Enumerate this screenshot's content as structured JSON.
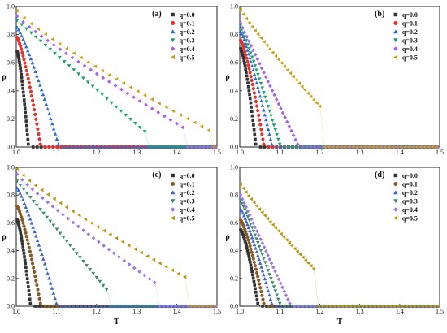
{
  "colors": {
    "q00": "#333333",
    "q01": "#e8302a",
    "q02": "#2f6bd8",
    "q03": "#1aa36b",
    "q04": "#a562e8",
    "q05": "#c9a211",
    "q01_alt": "#8a5a26",
    "q02_alt": "#3f63c9",
    "q03_alt": "#3d8a6a",
    "q04_alt": "#9b78e0",
    "q05_alt": "#b8950a"
  },
  "chart_data": [
    {
      "type": "scatter",
      "panel": "(a)",
      "xlabel": "",
      "ylabel": "ρ",
      "xlim": [
        1.0,
        1.5
      ],
      "ylim": [
        0.0,
        1.0
      ],
      "xticks": [
        "1.0",
        "1.1",
        "1.2",
        "1.3",
        "1.4",
        "1.5"
      ],
      "yticks": [
        "0.0",
        "0.2",
        "0.4",
        "0.6",
        "0.8",
        "1.0"
      ],
      "legend_position": "top-right",
      "series": [
        {
          "name": "q=0.0",
          "marker": "square",
          "color_key": "q00",
          "start_y": 0.68,
          "drop_x": 1.03,
          "curve": 1.4
        },
        {
          "name": "q=0.1",
          "marker": "circle",
          "color_key": "q01",
          "start_y": 0.78,
          "drop_x": 1.06,
          "curve": 1.3
        },
        {
          "name": "q=0.2",
          "marker": "triangle-up",
          "color_key": "q02",
          "start_y": 0.85,
          "drop_x": 1.105,
          "curve": 1.2
        },
        {
          "name": "q=0.3",
          "marker": "triangle-down",
          "color_key": "q03",
          "start_y": 0.9,
          "drop_x": 1.32,
          "end_y": 0.11,
          "curve": 1.0
        },
        {
          "name": "q=0.4",
          "marker": "diamond",
          "color_key": "q04",
          "start_y": 0.93,
          "drop_x": 1.415,
          "end_y": 0.14,
          "curve": 0.9
        },
        {
          "name": "q=0.5",
          "marker": "triangle-left",
          "color_key": "q05",
          "start_y": 0.97,
          "drop_x": 1.48,
          "end_y": 0.12,
          "curve": 0.85
        }
      ]
    },
    {
      "type": "scatter",
      "panel": "(b)",
      "xlabel": "",
      "ylabel": "ρ",
      "xlim": [
        1.0,
        1.5
      ],
      "ylim": [
        0.0,
        1.0
      ],
      "xticks": [
        "1.0",
        "1.1",
        "1.2",
        "1.3",
        "1.4",
        "1.5"
      ],
      "yticks": [
        "0.0",
        "0.2",
        "0.4",
        "0.6",
        "0.8",
        "1.0"
      ],
      "legend_position": "top-right",
      "series": [
        {
          "name": "q=0.0",
          "marker": "square",
          "color_key": "q00",
          "start_y": 0.7,
          "drop_x": 1.04,
          "curve": 1.4
        },
        {
          "name": "q=0.1",
          "marker": "circle",
          "color_key": "q01",
          "start_y": 0.76,
          "drop_x": 1.06,
          "curve": 1.3
        },
        {
          "name": "q=0.2",
          "marker": "triangle-up",
          "color_key": "q02",
          "start_y": 0.82,
          "drop_x": 1.08,
          "curve": 1.2
        },
        {
          "name": "q=0.3",
          "marker": "triangle-down",
          "color_key": "q03",
          "start_y": 0.86,
          "drop_x": 1.1,
          "curve": 1.1
        },
        {
          "name": "q=0.4",
          "marker": "diamond",
          "color_key": "q04",
          "start_y": 0.88,
          "drop_x": 1.145,
          "curve": 1.0
        },
        {
          "name": "q=0.5",
          "marker": "triangle-left",
          "color_key": "q05",
          "start_y": 0.98,
          "drop_x": 1.2,
          "end_y": 0.29,
          "curve": 0.9
        }
      ]
    },
    {
      "type": "scatter",
      "panel": "(c)",
      "xlabel": "T",
      "ylabel": "ρ",
      "xlim": [
        1.0,
        1.5
      ],
      "ylim": [
        0.0,
        1.0
      ],
      "xticks": [
        "1.0",
        "1.1",
        "1.2",
        "1.3",
        "1.4",
        "1.5"
      ],
      "yticks": [
        "0.0",
        "0.2",
        "0.4",
        "0.6",
        "0.8",
        "1.0"
      ],
      "legend_position": "top-right",
      "series": [
        {
          "name": "q=0.0",
          "marker": "square",
          "color_key": "q00",
          "start_y": 0.62,
          "drop_x": 1.035,
          "curve": 1.4
        },
        {
          "name": "q=0.1",
          "marker": "circle",
          "color_key": "q01_alt",
          "start_y": 0.72,
          "drop_x": 1.06,
          "curve": 1.3
        },
        {
          "name": "q=0.2",
          "marker": "triangle-up",
          "color_key": "q02_alt",
          "start_y": 0.85,
          "drop_x": 1.1,
          "curve": 1.2
        },
        {
          "name": "q=0.3",
          "marker": "triangle-down",
          "color_key": "q03_alt",
          "start_y": 0.9,
          "drop_x": 1.225,
          "end_y": 0.12,
          "curve": 1.0
        },
        {
          "name": "q=0.4",
          "marker": "diamond",
          "color_key": "q04_alt",
          "start_y": 0.95,
          "drop_x": 1.345,
          "end_y": 0.17,
          "curve": 0.9
        },
        {
          "name": "q=0.5",
          "marker": "triangle-left",
          "color_key": "q05_alt",
          "start_y": 0.99,
          "drop_x": 1.42,
          "end_y": 0.21,
          "curve": 0.85
        }
      ]
    },
    {
      "type": "scatter",
      "panel": "(d)",
      "xlabel": "T",
      "ylabel": "ρ",
      "xlim": [
        1.0,
        1.5
      ],
      "ylim": [
        0.0,
        1.0
      ],
      "xticks": [
        "1.0",
        "1.1",
        "1.2",
        "1.3",
        "1.4",
        "1.5"
      ],
      "yticks": [
        "0.0",
        "0.2",
        "0.4",
        "0.6",
        "0.8",
        "1.0"
      ],
      "legend_position": "top-right",
      "series": [
        {
          "name": "q=0.0",
          "marker": "square",
          "color_key": "q00",
          "start_y": 0.55,
          "drop_x": 1.045,
          "curve": 1.4
        },
        {
          "name": "q=0.1",
          "marker": "circle",
          "color_key": "q01_alt",
          "start_y": 0.62,
          "drop_x": 1.06,
          "curve": 1.3
        },
        {
          "name": "q=0.2",
          "marker": "triangle-up",
          "color_key": "q02_alt",
          "start_y": 0.7,
          "drop_x": 1.08,
          "curve": 1.2
        },
        {
          "name": "q=0.3",
          "marker": "triangle-down",
          "color_key": "q03_alt",
          "start_y": 0.76,
          "drop_x": 1.1,
          "curve": 1.1
        },
        {
          "name": "q=0.4",
          "marker": "diamond",
          "color_key": "q04_alt",
          "start_y": 0.8,
          "drop_x": 1.125,
          "curve": 1.0
        },
        {
          "name": "q=0.5",
          "marker": "triangle-left",
          "color_key": "q05_alt",
          "start_y": 0.88,
          "drop_x": 1.185,
          "end_y": 0.27,
          "curve": 0.9
        }
      ]
    }
  ]
}
